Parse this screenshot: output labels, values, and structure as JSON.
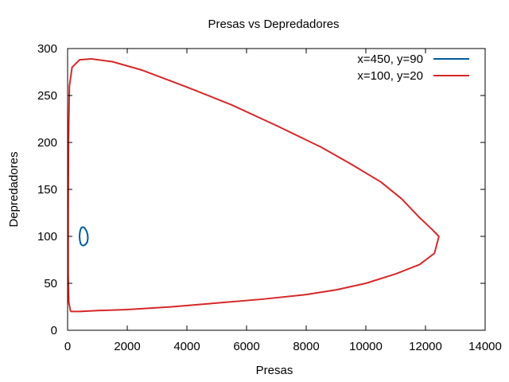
{
  "chart_data": {
    "type": "line",
    "title": "Presas vs Depredadores",
    "xlabel": "Presas",
    "ylabel": "Depredadores",
    "xlim": [
      0,
      14000
    ],
    "ylim": [
      0,
      300
    ],
    "x_ticks": [
      0,
      2000,
      4000,
      6000,
      8000,
      10000,
      12000,
      14000
    ],
    "y_ticks": [
      0,
      50,
      100,
      150,
      200,
      250,
      300
    ],
    "grid": false,
    "legend_position": "top-right",
    "series": [
      {
        "name": "x=450, y=90",
        "color": "#005a9c",
        "x": [
          500,
          560,
          620,
          660,
          680,
          670,
          630,
          570,
          510,
          460,
          430,
          410,
          400,
          410,
          440,
          500
        ],
        "y": [
          90,
          90.5,
          92,
          94,
          98,
          102,
          106,
          109,
          110,
          109,
          107,
          104,
          100,
          96,
          92,
          90
        ]
      },
      {
        "name": "x=100, y=20",
        "color": "#d62728",
        "x": [
          100,
          40,
          20,
          20,
          30,
          60,
          150,
          400,
          800,
          1500,
          2500,
          4000,
          5500,
          7000,
          8500,
          9500,
          10500,
          11200,
          11800,
          12200,
          12450,
          12300,
          11800,
          11000,
          10000,
          9000,
          8000,
          6500,
          5000,
          3500,
          2000,
          1000,
          400,
          200,
          100
        ],
        "y": [
          20,
          30,
          60,
          120,
          200,
          260,
          280,
          288,
          289,
          286,
          277,
          259,
          240,
          218,
          195,
          177,
          158,
          140,
          120,
          108,
          100,
          82,
          70,
          60,
          50,
          43,
          38,
          33,
          29,
          25,
          22,
          21,
          20,
          20,
          20
        ]
      }
    ]
  }
}
